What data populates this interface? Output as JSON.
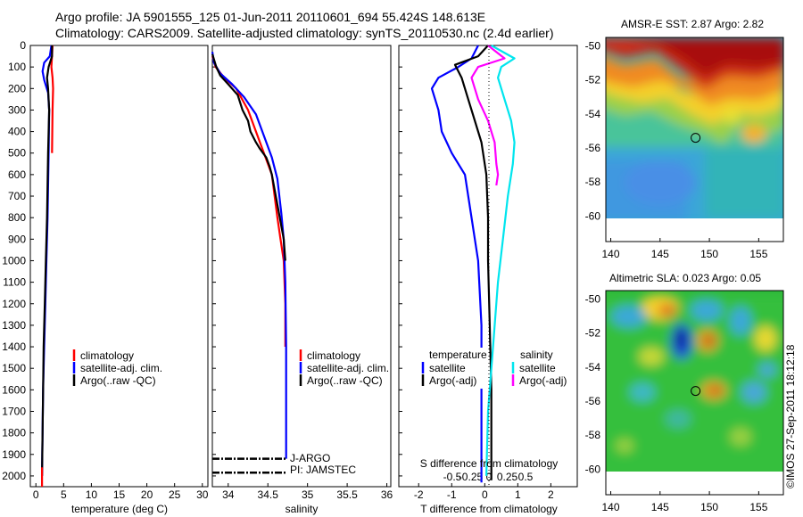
{
  "header": {
    "line1": "Argo profile: JA 5901555_125 01-Jun-2011 20110601_694 55.424S 148.613E",
    "line2": "Climatology: CARS2009. Satellite-adjusted climatology: synTS_20110530.nc (2.4d earlier)"
  },
  "footer": {
    "stamp": "©IMOS 27-Sep-2011 18:12:18"
  },
  "colors": {
    "climatology": "#ff0000",
    "satellite": "#0000ff",
    "argo": "#000000",
    "sal_satellite": "#00e5ee",
    "sal_argo": "#ff00ff"
  },
  "legends": {
    "temp": [
      "climatology",
      "satellite-adj. clim.",
      "Argo(..raw -QC)"
    ],
    "sal": [
      "climatology",
      "satellite-adj. clim.",
      "Argo(..raw -QC)"
    ],
    "diff_headers": [
      "temperature",
      "salinity"
    ],
    "diff_items": [
      "satellite",
      "Argo(-adj)",
      "satellite",
      "Argo(-adj)"
    ]
  },
  "annotations": {
    "jargo": "J-ARGO",
    "pi": "PI: JAMSTEC"
  },
  "chart_data": [
    {
      "type": "line",
      "panel": "temperature",
      "xlabel": "temperature (deg C)",
      "xlim": [
        -1,
        31
      ],
      "xticks": [
        0,
        5,
        10,
        15,
        20,
        25,
        30
      ],
      "ylim": [
        2050,
        0
      ],
      "yticks": [
        0,
        100,
        200,
        300,
        400,
        500,
        600,
        700,
        800,
        900,
        1000,
        1100,
        1200,
        1300,
        1400,
        1500,
        1600,
        1700,
        1800,
        1900,
        2000
      ],
      "series": [
        {
          "name": "climatology",
          "color": "#ff0000",
          "x": [
            3.0,
            2.9,
            2.8,
            3.0,
            3.1,
            3.0,
            2.9
          ],
          "y": [
            0,
            50,
            100,
            150,
            200,
            300,
            500
          ]
        },
        {
          "name": "satellite-adj. clim.",
          "color": "#0000ff",
          "x": [
            2.8,
            2.5,
            1.5,
            1.2,
            1.5,
            2.2,
            2.4,
            2.3,
            2.1,
            1.9,
            1.7,
            1.5,
            1.3,
            1.2,
            1.1
          ],
          "y": [
            0,
            50,
            80,
            120,
            160,
            220,
            300,
            500,
            800,
            1000,
            1200,
            1400,
            1600,
            1800,
            2000
          ]
        },
        {
          "name": "Argo(..raw -QC)",
          "color": "#000000",
          "x": [
            2.9,
            2.9,
            2.3,
            2.0,
            2.2,
            2.4,
            2.3,
            2.2,
            2.0,
            1.8,
            1.6,
            1.4,
            1.3,
            1.2,
            1.1
          ],
          "y": [
            0,
            50,
            100,
            150,
            200,
            300,
            400,
            500,
            800,
            1000,
            1200,
            1400,
            1600,
            1800,
            2000
          ]
        },
        {
          "name": "",
          "color": "#ff0000",
          "x": [
            1.1,
            1.1
          ],
          "y": [
            1960,
            2050
          ]
        }
      ]
    },
    {
      "type": "line",
      "panel": "salinity",
      "xlabel": "salinity",
      "xlim": [
        33.8,
        36.05
      ],
      "xticks": [
        34,
        34.5,
        35,
        35.5,
        36
      ],
      "ylim": [
        2050,
        0
      ],
      "series": [
        {
          "name": "climatology",
          "color": "#ff0000",
          "x": [
            33.8,
            33.84,
            33.95,
            34.1,
            34.25,
            34.35,
            34.45,
            34.55,
            34.62,
            34.66,
            34.7,
            34.72,
            34.72
          ],
          "y": [
            50,
            100,
            150,
            200,
            300,
            400,
            500,
            600,
            800,
            900,
            1000,
            1200,
            1400
          ]
        },
        {
          "name": "satellite-adj. clim.",
          "color": "#0000ff",
          "x": [
            33.8,
            33.82,
            33.9,
            34.05,
            34.2,
            34.35,
            34.45,
            34.55,
            34.62,
            34.67,
            34.7,
            34.72,
            34.73,
            34.73,
            34.73
          ],
          "y": [
            30,
            80,
            130,
            180,
            240,
            320,
            420,
            520,
            620,
            780,
            900,
            1100,
            1400,
            1700,
            1920
          ]
        },
        {
          "name": "Argo(..raw -QC)",
          "color": "#000000",
          "x": [
            33.8,
            33.85,
            33.9,
            34.0,
            34.12,
            34.18,
            34.25,
            34.28,
            34.35,
            34.4,
            34.48,
            34.52,
            34.55,
            34.6,
            34.65,
            34.7,
            34.72
          ],
          "y": [
            40,
            100,
            140,
            180,
            230,
            300,
            350,
            400,
            450,
            480,
            520,
            560,
            600,
            700,
            800,
            900,
            1000
          ]
        }
      ],
      "ann": [
        {
          "label": "J-ARGO",
          "x": [
            33.8,
            34.73
          ],
          "y": 1920
        },
        {
          "label": "PI: JAMSTEC",
          "x": [
            33.8,
            34.73
          ],
          "y": 1985
        }
      ]
    },
    {
      "type": "line",
      "panel": "difference",
      "xlabel": "T difference from climatology",
      "xlabel2": "S difference from climatology",
      "xlim": [
        -2.6,
        2.8
      ],
      "xticks": [
        -2,
        -1,
        0,
        1,
        2
      ],
      "sticks": [
        -0.5,
        -0.25,
        0,
        0.25,
        0.5
      ],
      "ylim": [
        2050,
        0
      ],
      "series": [
        {
          "name": "temperature satellite",
          "color": "#0000ff",
          "x": [
            -0.2,
            -0.4,
            -0.8,
            -1.4,
            -1.6,
            -1.4,
            -1.3,
            -1.0,
            -0.6,
            -0.4,
            -0.2,
            -0.1,
            -0.1,
            -0.1,
            -0.1
          ],
          "y": [
            0,
            60,
            100,
            150,
            200,
            300,
            400,
            500,
            600,
            800,
            1000,
            1300,
            1600,
            1900,
            2030
          ]
        },
        {
          "name": "temperature Argo(-adj)",
          "color": "#000000",
          "x": [
            0.1,
            -0.2,
            -0.9,
            -0.7,
            -0.5,
            -0.3,
            -0.1,
            0.05,
            0.1,
            0.1,
            0.15,
            0.2,
            0.2,
            0.2
          ],
          "y": [
            0,
            50,
            90,
            150,
            250,
            350,
            450,
            600,
            800,
            1000,
            1300,
            1600,
            1900,
            2020
          ]
        },
        {
          "name": "salinity satellite",
          "color": "#00e5ee",
          "x": [
            0.2,
            0.9,
            0.5,
            0.4,
            0.6,
            0.8,
            0.9,
            0.85,
            0.7,
            0.55,
            0.4,
            0.25,
            0.1,
            0.05
          ],
          "y": [
            0,
            60,
            100,
            150,
            250,
            350,
            450,
            550,
            700,
            900,
            1100,
            1400,
            1700,
            2000
          ]
        },
        {
          "name": "salinity Argo(-adj)",
          "color": "#ff00ff",
          "x": [
            0.1,
            0.6,
            -0.2,
            -0.4,
            -0.2,
            0.1,
            0.3,
            0.35,
            0.4,
            0.35
          ],
          "y": [
            0,
            60,
            100,
            150,
            250,
            350,
            450,
            550,
            600,
            650
          ]
        }
      ]
    },
    {
      "type": "heatmap",
      "panel": "sst_map",
      "title": "AMSR-E SST: 2.87  Argo: 2.82",
      "xticks": [
        140,
        145,
        150,
        155
      ],
      "yticks": [
        -50,
        -52,
        -54,
        -56,
        -58,
        -60
      ],
      "xlim": [
        139.5,
        157.5
      ],
      "ylim": [
        -61.5,
        -49.5
      ],
      "marker": {
        "lon": 148.6,
        "lat": -55.4
      }
    },
    {
      "type": "heatmap",
      "panel": "sla_map",
      "title": "Altimetric SLA: 0.023  Argo: 0.05",
      "xticks": [
        140,
        145,
        150,
        155
      ],
      "yticks": [
        -50,
        -52,
        -54,
        -56,
        -58,
        -60
      ],
      "xlim": [
        139.5,
        157.5
      ],
      "ylim": [
        -61.5,
        -49.5
      ],
      "marker": {
        "lon": 148.6,
        "lat": -55.4
      }
    }
  ]
}
